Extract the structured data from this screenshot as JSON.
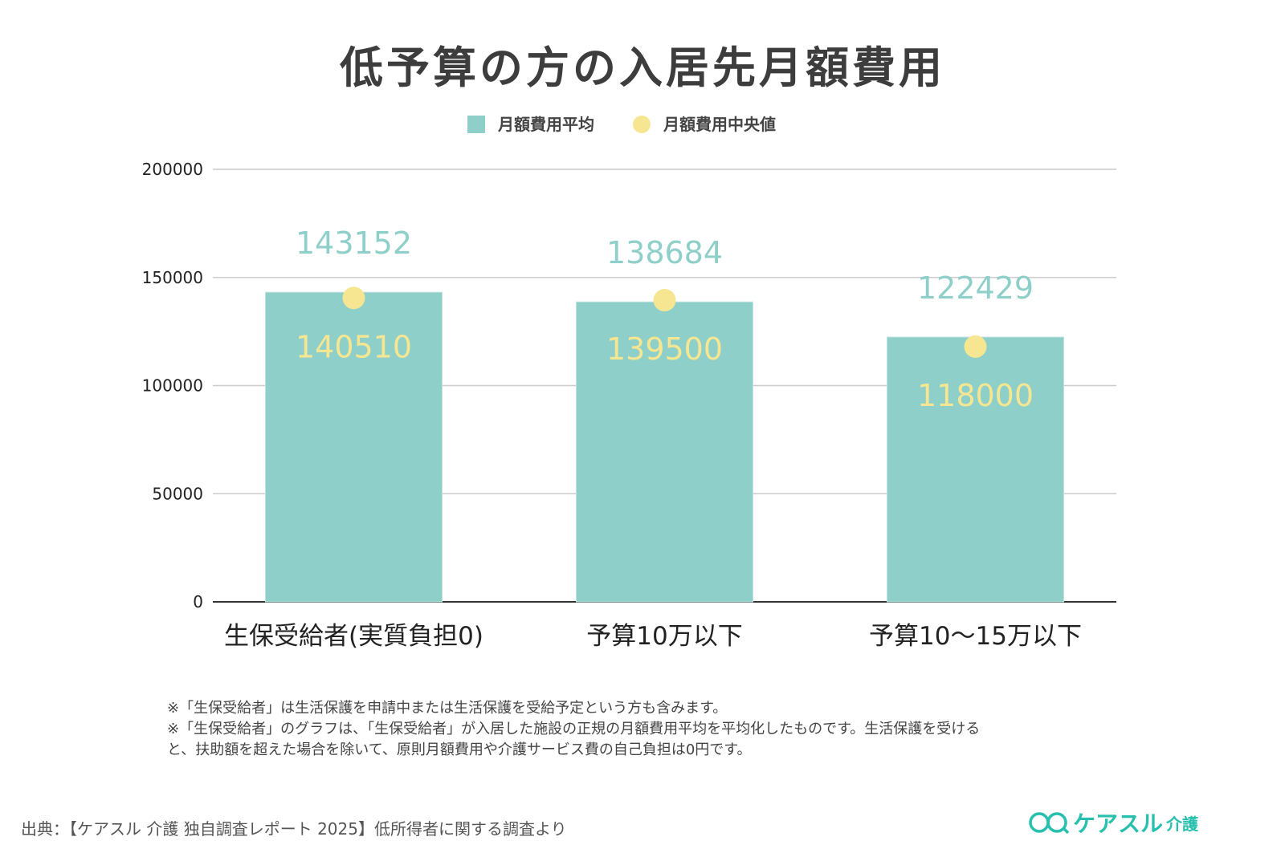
{
  "chart_data": {
    "type": "bar",
    "title": "低予算の方の入居先月額費用",
    "categories": [
      "生保受給者(実質負担0)",
      "予算10万以下",
      "予算10〜15万以下"
    ],
    "series": [
      {
        "name": "月額費用平均",
        "kind": "bar",
        "color": "#8ecfc9",
        "values": [
          143152,
          138684,
          122429
        ]
      },
      {
        "name": "月額費用中央値",
        "kind": "point",
        "color": "#f6e691",
        "values": [
          140510,
          139500,
          118000
        ]
      }
    ],
    "ylim": [
      0,
      200000
    ],
    "yticks": [
      0,
      50000,
      100000,
      150000,
      200000
    ],
    "grid": true,
    "legend": "top"
  },
  "notes": [
    "※「生保受給者」は生活保護を申請中または生活保護を受給予定という方も含みます。",
    "※「生保受給者」のグラフは、「生保受給者」が入居した施設の正規の月額費用平均を平均化したものです。生活保護を受ける",
    "と、扶助額を超えた場合を除いて、原則月額費用や介護サービス費の自己負担は0円です。"
  ],
  "source": "出典：【ケアスル 介護 独自調査レポート 2025】低所得者に関する調査より",
  "logo": {
    "main": "ケアスル",
    "sub": "介護"
  }
}
